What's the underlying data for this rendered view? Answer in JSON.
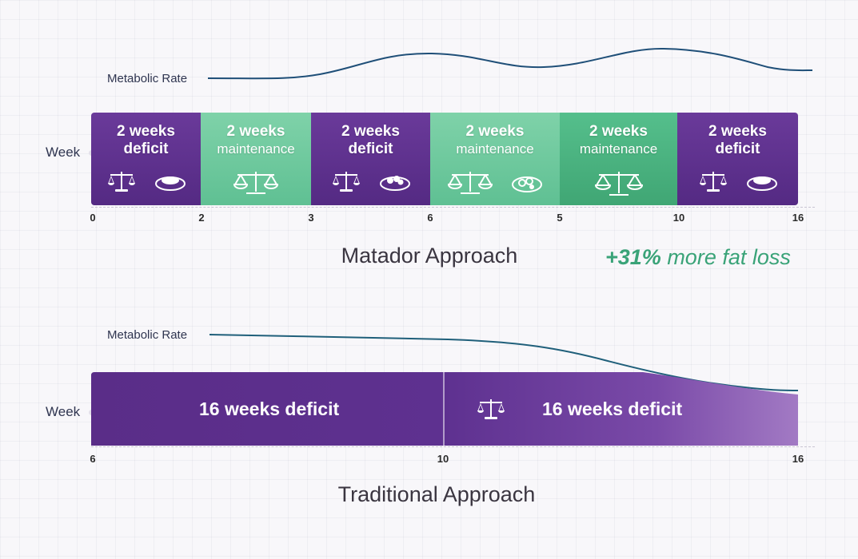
{
  "matador": {
    "metabolic_label": "Metabolic Rate",
    "week_label": "Week",
    "segments": [
      {
        "line1": "2 weeks",
        "line2": "deficit",
        "kind": "deficit"
      },
      {
        "line1": "2 weeks",
        "line2": "maintenance",
        "kind": "maintenance"
      },
      {
        "line1": "2 weeks",
        "line2": "deficit",
        "kind": "deficit"
      },
      {
        "line1": "2 weeks",
        "line2": "maintenance",
        "kind": "maintenance"
      },
      {
        "line1": "2 weeks",
        "line2": "maintenance",
        "kind": "maintenance"
      },
      {
        "line1": "2 weeks",
        "line2": "deficit",
        "kind": "deficit"
      }
    ],
    "ticks": [
      "0",
      "2",
      "3",
      "6",
      "5",
      "10",
      "16"
    ],
    "title": "Matador Approach",
    "callout_strong": "+31%",
    "callout_rest": " more fat loss"
  },
  "traditional": {
    "metabolic_label": "Metabolic Rate",
    "week_label": "Week",
    "bar_left": "16 weeks deficit",
    "bar_right": "16 weeks deficit",
    "ticks": [
      "6",
      "10",
      "16"
    ],
    "title": "Traditional Approach"
  },
  "icons": {
    "scale": "balance-scale-icon",
    "plate": "food-plate-icon"
  },
  "colors": {
    "deficit": "#5a2d8a",
    "maintenance": "#6dc89d",
    "curve": "#1f5f7a",
    "callout": "#3aa378"
  }
}
